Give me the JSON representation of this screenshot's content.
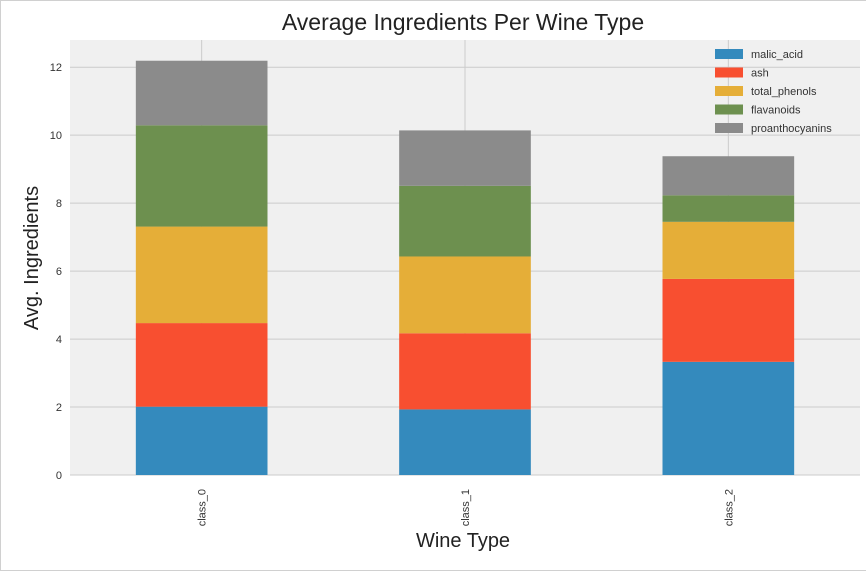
{
  "chart_data": {
    "type": "bar",
    "stacked": true,
    "title": "Average Ingredients Per Wine Type",
    "xlabel": "Wine Type",
    "ylabel": "Avg. Ingredients",
    "categories": [
      "class_0",
      "class_1",
      "class_2"
    ],
    "ylim": [
      0,
      12.8
    ],
    "yticks": [
      0,
      2,
      4,
      6,
      8,
      10,
      12
    ],
    "grid": true,
    "legend_position": "top-right",
    "series": [
      {
        "name": "malic_acid",
        "color": "#348ABD",
        "values": [
          2.01,
          1.93,
          3.33
        ]
      },
      {
        "name": "ash",
        "color": "#F84F30",
        "values": [
          2.46,
          2.24,
          2.44
        ]
      },
      {
        "name": "total_phenols",
        "color": "#E5AE38",
        "values": [
          2.84,
          2.26,
          1.68
        ]
      },
      {
        "name": "flavanoids",
        "color": "#6D904F",
        "values": [
          2.98,
          2.08,
          0.78
        ]
      },
      {
        "name": "proanthocyanins",
        "color": "#8B8B8B",
        "values": [
          1.9,
          1.63,
          1.15
        ]
      }
    ]
  }
}
